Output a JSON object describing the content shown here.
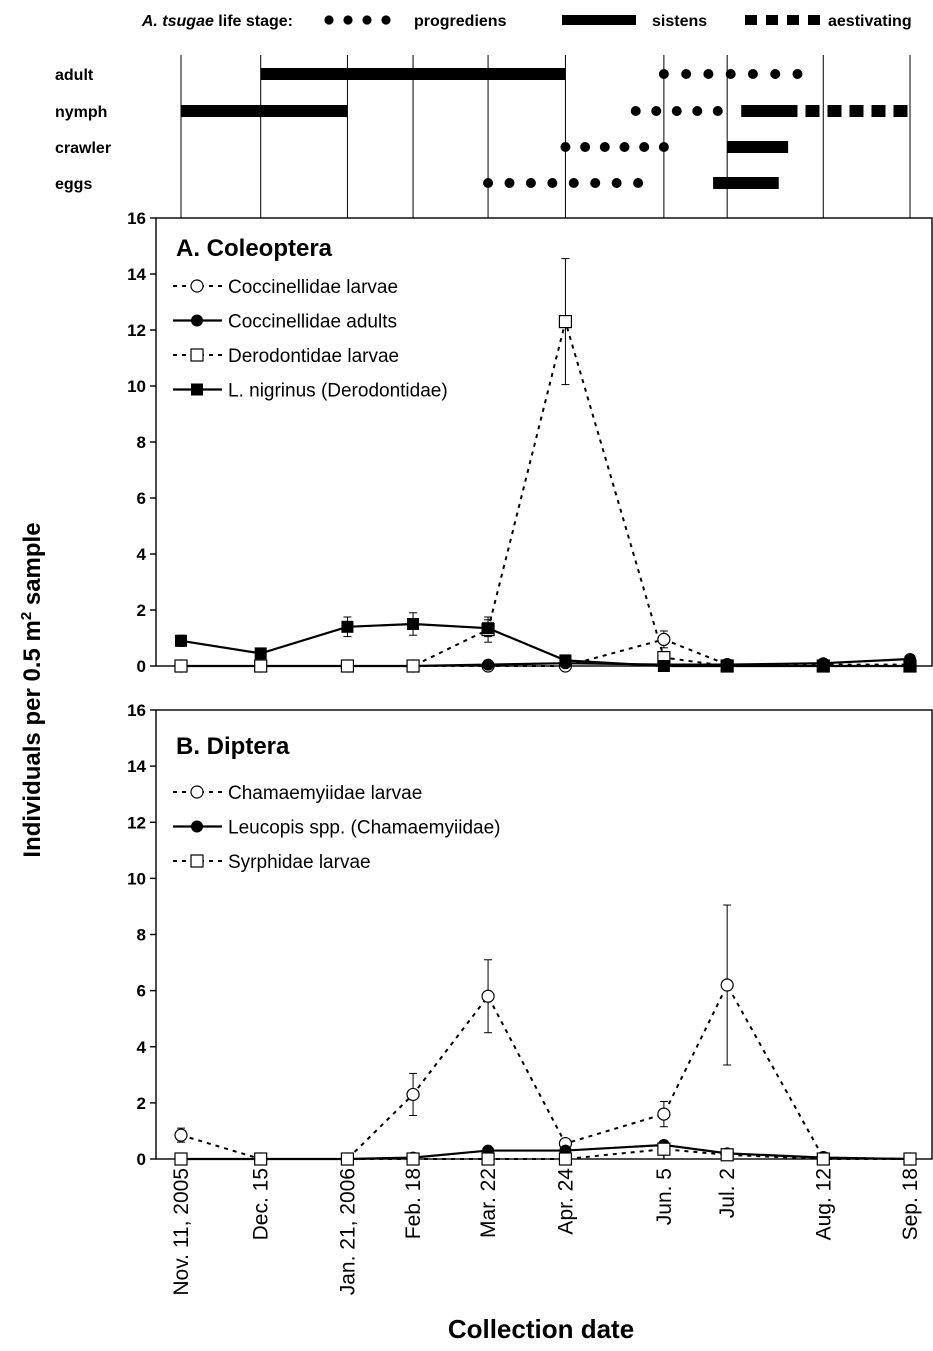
{
  "life_stage_legend": {
    "title_italic": "A. tsugae",
    "title_rest": " life stage:",
    "progrediens": "progrediens",
    "sistens": "sistens",
    "aestivating": "aestivating"
  },
  "stage_labels": [
    "adult",
    "nymph",
    "crawler",
    "eggs"
  ],
  "phenology": {
    "adult": {
      "sistens": [
        [
          "Dec. 15",
          "Apr. 24"
        ]
      ],
      "progrediens": [
        [
          "Jun. 5",
          "Aug. 1"
        ]
      ],
      "aestivating": []
    },
    "nymph": {
      "sistens": [
        [
          "Nov. 11, 2005",
          "Jan. 21, 2006"
        ],
        [
          "Jul. 8",
          "Aug. 1"
        ]
      ],
      "progrediens": [
        [
          "May. 24",
          "Jun. 28"
        ]
      ],
      "aestivating": [
        [
          "Aug. 1",
          "Sep. 18"
        ]
      ]
    },
    "crawler": {
      "sistens": [
        [
          "Jul. 2",
          "Jul. 28"
        ]
      ],
      "progrediens": [
        [
          "Apr. 24",
          "Jun. 5"
        ]
      ],
      "aestivating": []
    },
    "eggs": {
      "sistens": [
        [
          "Jun. 26",
          "Jul. 24"
        ]
      ],
      "progrediens": [
        [
          "Mar. 22",
          "May. 25"
        ]
      ],
      "aestivating": []
    }
  },
  "shared": {
    "ylabel_pre": "Individuals per 0.5 m",
    "ylabel_sup": "2",
    "ylabel_post": " sample",
    "xlabel": "Collection date",
    "x_tick_labels": [
      "Nov. 11, 2005",
      "Dec. 15",
      "Jan. 21, 2006",
      "Feb. 18",
      "Mar. 22",
      "Apr. 24",
      "Jun. 5",
      "Jul. 2",
      "Aug. 12",
      "Sep. 18"
    ],
    "y_tick_labels": [
      "0",
      "2",
      "4",
      "6",
      "8",
      "10",
      "12",
      "14",
      "16"
    ]
  },
  "chart_data": [
    {
      "type": "line",
      "title": "A. Coleoptera",
      "x": [
        "Nov. 11, 2005",
        "Dec. 15",
        "Jan. 21, 2006",
        "Feb. 18",
        "Mar. 22",
        "Apr. 24",
        "Jun. 5",
        "Jul. 2",
        "Aug. 12",
        "Sep. 18"
      ],
      "ylim": [
        0,
        16
      ],
      "yticks": [
        0,
        2,
        4,
        6,
        8,
        10,
        12,
        14,
        16
      ],
      "legend_position": "top-left",
      "series": [
        {
          "name": "Coccinellidae larvae",
          "marker": "open-circle",
          "line": "dashed",
          "values": [
            0,
            0,
            0,
            0,
            0,
            0,
            0.95,
            0.05,
            0.05,
            0.05
          ],
          "errors": [
            0,
            0,
            0,
            0,
            0,
            0,
            0.3,
            0,
            0,
            0
          ]
        },
        {
          "name": "Coccinellidae adults",
          "marker": "filled-circle",
          "line": "solid",
          "values": [
            0,
            0,
            0,
            0,
            0.05,
            0.1,
            0.05,
            0.05,
            0.1,
            0.25
          ],
          "errors": [
            0,
            0,
            0,
            0,
            0,
            0,
            0,
            0,
            0,
            0
          ]
        },
        {
          "name": "Derodontidae larvae",
          "marker": "open-square",
          "line": "dashed",
          "values": [
            0,
            0,
            0,
            0,
            1.3,
            12.3,
            0.3,
            0,
            0,
            0
          ],
          "errors": [
            0,
            0,
            0,
            0,
            0.45,
            2.25,
            0,
            0,
            0,
            0
          ]
        },
        {
          "name": "L. nigrinus (Derodontidae)",
          "marker": "filled-square",
          "line": "solid",
          "values": [
            0.9,
            0.45,
            1.4,
            1.5,
            1.35,
            0.2,
            0,
            0,
            0,
            0
          ],
          "errors": [
            0.2,
            0,
            0.35,
            0.4,
            0.3,
            0,
            0,
            0,
            0,
            0
          ]
        }
      ]
    },
    {
      "type": "line",
      "title": "B. Diptera",
      "x": [
        "Nov. 11, 2005",
        "Dec. 15",
        "Jan. 21, 2006",
        "Feb. 18",
        "Mar. 22",
        "Apr. 24",
        "Jun. 5",
        "Jul. 2",
        "Aug. 12",
        "Sep. 18"
      ],
      "ylim": [
        0,
        16
      ],
      "yticks": [
        0,
        2,
        4,
        6,
        8,
        10,
        12,
        14,
        16
      ],
      "legend_position": "top-left",
      "series": [
        {
          "name": "Chamaemyiidae larvae",
          "marker": "open-circle",
          "line": "dashed",
          "values": [
            0.85,
            0,
            0,
            2.3,
            5.8,
            0.55,
            1.6,
            6.2,
            0.05,
            0
          ],
          "errors": [
            0.25,
            0,
            0,
            0.75,
            1.3,
            0,
            0.45,
            2.85,
            0,
            0
          ]
        },
        {
          "name": "Leucopis spp. (Chamaemyiidae)",
          "marker": "filled-circle",
          "line": "solid",
          "values": [
            0,
            0,
            0,
            0.05,
            0.3,
            0.3,
            0.5,
            0.2,
            0.05,
            0
          ],
          "errors": [
            0,
            0,
            0,
            0,
            0,
            0,
            0,
            0,
            0,
            0
          ]
        },
        {
          "name": "Syrphidae larvae",
          "marker": "open-square",
          "line": "dashed",
          "values": [
            0,
            0,
            0,
            0,
            0,
            0,
            0.35,
            0.15,
            0,
            0
          ],
          "errors": [
            0,
            0,
            0,
            0,
            0,
            0,
            0,
            0,
            0,
            0
          ]
        }
      ]
    }
  ]
}
